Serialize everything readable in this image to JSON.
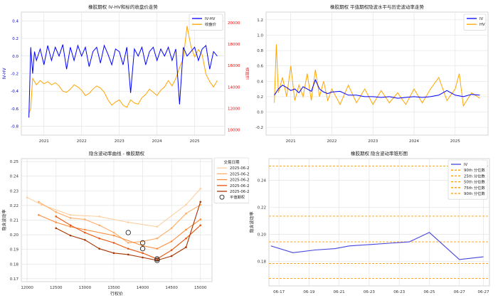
{
  "chart_data": [
    {
      "type": "line",
      "title": "橡胶期权 IV-HV和标的收盘价走势",
      "ylabel": "IV-HV",
      "y2label": "收盘价",
      "ylim": [
        -0.9,
        0.5
      ],
      "y2lim": [
        9500,
        21000
      ],
      "xlim": [
        2020.4,
        2025.8
      ],
      "y_ticks": [
        -0.8,
        -0.6,
        -0.4,
        -0.2,
        0.0,
        0.2,
        0.4
      ],
      "y_tick_labels": [
        "-0.8",
        "-0.6",
        "-0.4",
        "-0.2",
        "0.0",
        "0.2",
        "0.4"
      ],
      "y2_ticks": [
        10000,
        12000,
        14000,
        16000,
        18000,
        20000
      ],
      "y2_tick_labels": [
        "10000",
        "12000",
        "14000",
        "16000",
        "18000",
        "20000"
      ],
      "x_ticks": [
        2021,
        2022,
        2023,
        2024,
        2025
      ],
      "x_tick_labels": [
        "2021",
        "2022",
        "2023",
        "2024",
        "2025"
      ],
      "legend": [
        "IV-HV",
        "收盘价"
      ],
      "legend_position": "top-right",
      "grid": true,
      "colors": {
        "series1": "#0000ff",
        "series2": "#ffa500",
        "axis2": "#ff0000"
      },
      "series": [
        {
          "name": "IV-HV",
          "x": [
            2020.6,
            2020.65,
            2020.7,
            2020.75,
            2020.8,
            2020.9,
            2021.0,
            2021.1,
            2021.2,
            2021.3,
            2021.4,
            2021.5,
            2021.6,
            2021.7,
            2021.8,
            2021.9,
            2022.0,
            2022.1,
            2022.2,
            2022.3,
            2022.4,
            2022.5,
            2022.6,
            2022.7,
            2022.8,
            2022.9,
            2023.0,
            2023.1,
            2023.2,
            2023.3,
            2023.4,
            2023.5,
            2023.6,
            2023.7,
            2023.8,
            2023.9,
            2024.0,
            2024.1,
            2024.2,
            2024.3,
            2024.4,
            2024.5,
            2024.6,
            2024.7,
            2024.8,
            2024.9,
            2025.0,
            2025.1,
            2025.2,
            2025.3,
            2025.4,
            2025.5,
            2025.6
          ],
          "values": [
            -0.7,
            0.1,
            -0.2,
            0.05,
            -0.05,
            0.08,
            -0.1,
            0.12,
            -0.05,
            0.1,
            0.0,
            0.13,
            -0.15,
            0.1,
            -0.05,
            0.12,
            0.0,
            0.1,
            -0.12,
            0.05,
            0.1,
            -0.08,
            0.12,
            0.02,
            -0.1,
            0.08,
            0.05,
            -0.1,
            0.1,
            -0.42,
            0.08,
            0.0,
            0.1,
            -0.1,
            0.05,
            0.1,
            -0.05,
            0.08,
            0.0,
            0.1,
            -0.05,
            0.08,
            -0.55,
            0.1,
            0.0,
            0.05,
            0.1,
            -0.05,
            0.08,
            0.12,
            -0.15,
            0.05,
            0.0
          ]
        },
        {
          "name": "收盘价",
          "x": [
            2020.6,
            2020.65,
            2020.7,
            2020.75,
            2020.8,
            2020.9,
            2021.0,
            2021.1,
            2021.2,
            2021.3,
            2021.4,
            2021.5,
            2021.6,
            2021.7,
            2021.8,
            2021.9,
            2022.0,
            2022.1,
            2022.2,
            2022.3,
            2022.4,
            2022.5,
            2022.6,
            2022.7,
            2022.8,
            2022.9,
            2023.0,
            2023.1,
            2023.2,
            2023.3,
            2023.4,
            2023.5,
            2023.6,
            2023.7,
            2023.8,
            2023.9,
            2024.0,
            2024.1,
            2024.2,
            2024.3,
            2024.4,
            2024.5,
            2024.6,
            2024.7,
            2024.8,
            2024.9,
            2025.0,
            2025.1,
            2025.2,
            2025.3,
            2025.4,
            2025.5,
            2025.6
          ],
          "values": [
            11500,
            12000,
            14800,
            14500,
            14200,
            14600,
            14300,
            14500,
            14200,
            14400,
            14100,
            13600,
            13500,
            13800,
            14200,
            14000,
            13700,
            13200,
            13400,
            13800,
            14100,
            13900,
            13500,
            12800,
            12300,
            12600,
            12800,
            12300,
            12100,
            12800,
            12500,
            12400,
            13000,
            13300,
            13800,
            13500,
            13200,
            13700,
            14000,
            14600,
            14100,
            14800,
            15800,
            16700,
            19700,
            17800,
            16800,
            17500,
            17000,
            15200,
            14500,
            14000,
            14600
          ]
        }
      ]
    },
    {
      "type": "line",
      "title": "橡胶期权 平值期权隐波水平与历史波动率走势",
      "xlabel": "",
      "ylabel": "",
      "ylim": [
        -0.3,
        1.3
      ],
      "xlim": [
        2020.4,
        2025.8
      ],
      "y_ticks": [
        -0.2,
        0.0,
        0.2,
        0.4,
        0.6,
        0.8,
        1.0,
        1.2
      ],
      "y_tick_labels": [
        "-0.2",
        "0.0",
        "0.2",
        "0.4",
        "0.6",
        "0.8",
        "1.0",
        "1.2"
      ],
      "x_ticks": [
        2021,
        2022,
        2023,
        2024,
        2025
      ],
      "x_tick_labels": [
        "2021",
        "2022",
        "2023",
        "2024",
        "2025"
      ],
      "legend": [
        "IV",
        "HV"
      ],
      "legend_position": "top-right",
      "grid": true,
      "colors": {
        "series1": "#0000ff",
        "series2": "#ffa500"
      },
      "series": [
        {
          "name": "IV",
          "x": [
            2020.6,
            2020.7,
            2020.8,
            2020.9,
            2021.0,
            2021.1,
            2021.2,
            2021.3,
            2021.4,
            2021.5,
            2021.6,
            2021.7,
            2021.8,
            2021.9,
            2022.0,
            2022.2,
            2022.4,
            2022.6,
            2022.8,
            2023.0,
            2023.2,
            2023.4,
            2023.6,
            2023.8,
            2024.0,
            2024.2,
            2024.4,
            2024.6,
            2024.8,
            2025.0,
            2025.2,
            2025.4,
            2025.6
          ],
          "values": [
            0.22,
            0.3,
            0.35,
            0.32,
            0.28,
            0.3,
            0.25,
            0.33,
            0.3,
            0.27,
            0.42,
            0.3,
            0.26,
            0.24,
            0.26,
            0.27,
            0.22,
            0.22,
            0.2,
            0.2,
            0.19,
            0.2,
            0.18,
            0.19,
            0.2,
            0.19,
            0.2,
            0.22,
            0.28,
            0.22,
            0.2,
            0.23,
            0.22
          ]
        },
        {
          "name": "HV",
          "x": [
            2020.6,
            2020.65,
            2020.7,
            2020.8,
            2020.9,
            2021.0,
            2021.1,
            2021.2,
            2021.3,
            2021.4,
            2021.5,
            2021.6,
            2021.7,
            2021.8,
            2021.9,
            2022.0,
            2022.2,
            2022.4,
            2022.6,
            2022.8,
            2023.0,
            2023.2,
            2023.4,
            2023.6,
            2023.8,
            2024.0,
            2024.2,
            2024.4,
            2024.6,
            2024.8,
            2025.0,
            2025.1,
            2025.2,
            2025.4,
            2025.6
          ],
          "values": [
            0.12,
            0.88,
            0.25,
            0.45,
            0.2,
            0.6,
            0.15,
            0.35,
            0.2,
            0.5,
            0.15,
            0.55,
            0.2,
            0.4,
            0.15,
            0.3,
            0.1,
            0.35,
            0.12,
            0.3,
            0.1,
            0.28,
            0.12,
            0.25,
            0.1,
            0.3,
            0.12,
            0.3,
            0.45,
            0.15,
            0.3,
            0.5,
            0.08,
            0.25,
            0.18
          ]
        }
      ]
    },
    {
      "type": "line",
      "title": "隐含波动率曲线 - 橡胶期权",
      "xlabel": "行权价",
      "ylabel": "隐含波动率",
      "xlim": [
        11900,
        15200
      ],
      "ylim": [
        0.168,
        0.252
      ],
      "x_ticks": [
        12000,
        12500,
        13000,
        13500,
        14000,
        14500,
        15000
      ],
      "x_tick_labels": [
        "12000",
        "12500",
        "13000",
        "13500",
        "14000",
        "14500",
        "15000"
      ],
      "y_ticks": [
        0.17,
        0.18,
        0.19,
        0.2,
        0.21,
        0.22,
        0.23,
        0.24,
        0.25
      ],
      "y_tick_labels": [
        "0.17",
        "0.18",
        "0.19",
        "0.20",
        "0.21",
        "0.22",
        "0.23",
        "0.24",
        "0.25"
      ],
      "legend_title": "交易日期",
      "legend": [
        "2025-06-23",
        "2025-06-24",
        "2025-06-25",
        "2025-06-26",
        "2025-06-27",
        "平值期权"
      ],
      "legend_position": "top-right",
      "grid": true,
      "series": [
        {
          "name": "2025-06-23",
          "color": "#fdd0a2",
          "x": [
            12000,
            12250,
            12750,
            13250,
            13750,
            14250,
            14750,
            15000
          ],
          "values": [
            0.2255,
            0.2205,
            0.2135,
            0.2125,
            0.2085,
            0.2055,
            0.2205,
            0.2315
          ]
        },
        {
          "name": "2025-06-24",
          "color": "#fdae6b",
          "x": [
            12200,
            12500,
            12750,
            13000,
            13250,
            13500,
            13750,
            14000,
            14250,
            14500,
            14750,
            15000
          ],
          "values": [
            0.2225,
            0.2155,
            0.2115,
            0.2105,
            0.2065,
            0.2015,
            0.1945,
            0.1955,
            0.1975,
            0.2045,
            0.2145,
            0.2205
          ]
        },
        {
          "name": "2025-06-25",
          "color": "#fd8d3c",
          "x": [
            12200,
            12500,
            12750,
            13000,
            13500,
            14000,
            14250,
            14500,
            14750,
            15000
          ],
          "values": [
            0.2135,
            0.2085,
            0.2055,
            0.2035,
            0.1995,
            0.1925,
            0.1905,
            0.1955,
            0.2035,
            0.2105
          ]
        },
        {
          "name": "2025-06-26",
          "color": "#e6550d",
          "x": [
            12500,
            12750,
            13000,
            13250,
            13500,
            13750,
            14000,
            14250,
            14500,
            14750,
            15000
          ],
          "values": [
            0.2125,
            0.2065,
            0.2015,
            0.1975,
            0.1945,
            0.1905,
            0.1875,
            0.1835,
            0.1895,
            0.1975,
            0.2065
          ]
        },
        {
          "name": "2025-06-27",
          "color": "#a63603",
          "x": [
            12500,
            12750,
            13000,
            13250,
            13500,
            13750,
            14000,
            14250,
            14500,
            14750,
            15000
          ],
          "values": [
            0.2045,
            0.1995,
            0.1965,
            0.1905,
            0.1875,
            0.1865,
            0.1845,
            0.1825,
            0.1855,
            0.1915,
            0.2225
          ]
        }
      ],
      "atm_points": [
        {
          "x": 13750,
          "y": 0.2015
        },
        {
          "x": 14000,
          "y": 0.1945
        },
        {
          "x": 14000,
          "y": 0.1905
        },
        {
          "x": 14250,
          "y": 0.1835
        },
        {
          "x": 14250,
          "y": 0.1825
        }
      ]
    },
    {
      "type": "line",
      "title": "橡胶期权 隐含波动率锥形图",
      "xlabel": "",
      "ylabel": "隐含波动率",
      "xlim": [
        0,
        11
      ],
      "ylim": [
        0.162,
        0.256
      ],
      "x_ticks": [
        0.5,
        2,
        3.5,
        5,
        6.5,
        8,
        9.5,
        10.7
      ],
      "x_tick_labels": [
        "06-17",
        "06-19",
        "06-21",
        "06-23",
        "06-23",
        "06-25",
        "06-27",
        "06-27"
      ],
      "y_ticks": [
        0.18,
        0.2,
        0.22,
        0.24
      ],
      "y_tick_labels": [
        "0.18",
        "0.20",
        "0.22",
        "0.24"
      ],
      "legend": [
        "IV",
        "90th 分位数",
        "25th 分位数",
        "50th 分位数",
        "75th 分位数",
        "90th 分位数"
      ],
      "legend_position": "top-right",
      "grid": true,
      "series": [
        {
          "name": "IV",
          "color": "#4444dd",
          "x": [
            0.1,
            1.2,
            2.3,
            3.3,
            4.0,
            5.0,
            6.0,
            7.0,
            8.0,
            9.5,
            10.7
          ],
          "values": [
            0.1915,
            0.1865,
            0.1885,
            0.1895,
            0.1915,
            0.1925,
            0.1935,
            0.1945,
            0.2015,
            0.1815,
            0.1835
          ]
        }
      ],
      "quantiles": [
        {
          "name": "90th 分位数",
          "value": 0.2505,
          "color": "#ff9900"
        },
        {
          "name": "25th 分位数",
          "value": 0.2135,
          "color": "#ff9900"
        },
        {
          "name": "50th 分位数",
          "value": 0.1945,
          "color": "#ff9900"
        },
        {
          "name": "75th 分位数",
          "value": 0.1785,
          "color": "#ff9900"
        },
        {
          "name": "90th 分位数",
          "value": 0.1675,
          "color": "#ff9900"
        }
      ]
    }
  ]
}
